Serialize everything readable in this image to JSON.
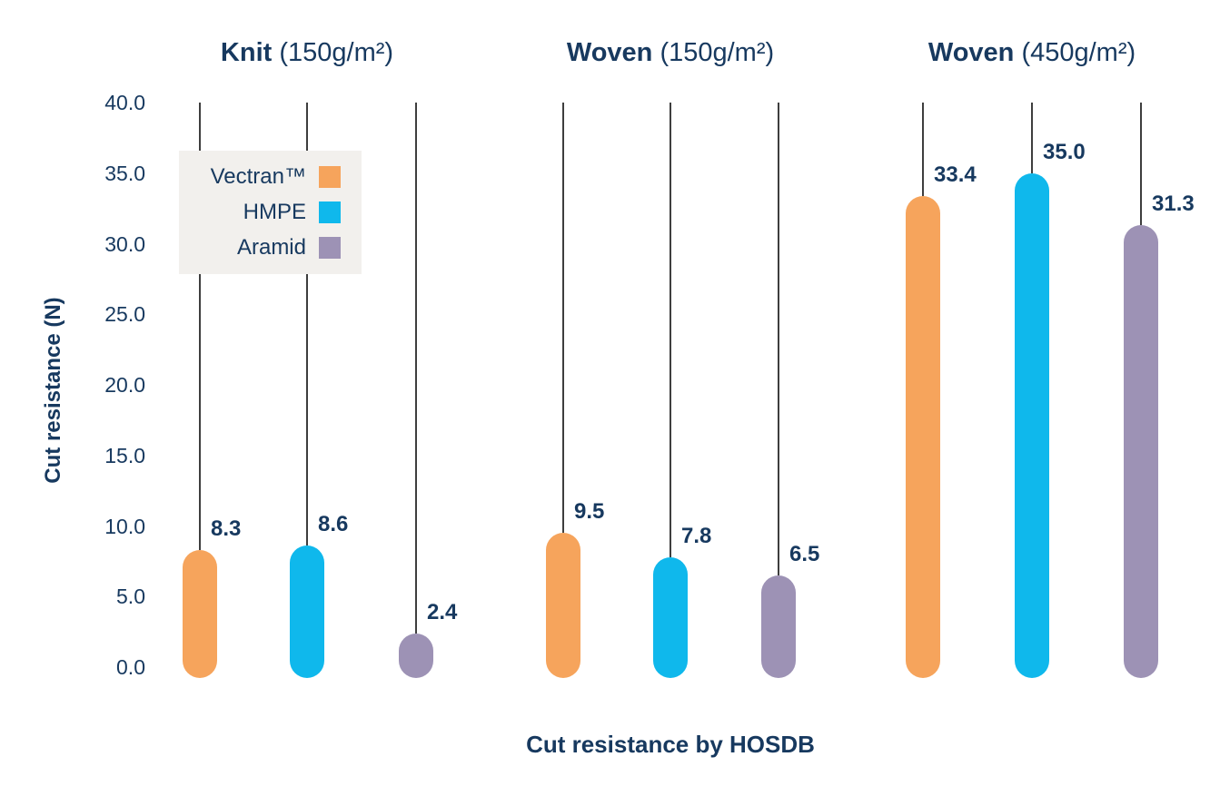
{
  "chart_data": {
    "type": "bar",
    "caption": "Cut resistance by HOSDB",
    "ylabel": "Cut resistance (N)",
    "ylim": [
      0,
      40
    ],
    "ytick_labels": [
      "40.0",
      "35.0",
      "30.0",
      "25.0",
      "20.0",
      "15.0",
      "10.0",
      "5.0",
      "0.0"
    ],
    "grid": false,
    "legend_position": "upper-left",
    "categories": [
      {
        "bold": "Knit",
        "rest": " (150g/m²)"
      },
      {
        "bold": "Woven",
        "rest": " (150g/m²)"
      },
      {
        "bold": "Woven",
        "rest": " (450g/m²)"
      }
    ],
    "series": [
      {
        "name": "Vectran™",
        "color": "#F6A45C",
        "values": [
          8.3,
          9.5,
          33.4
        ]
      },
      {
        "name": "HMPE",
        "color": "#0FB8EC",
        "values": [
          8.6,
          7.8,
          35.0
        ]
      },
      {
        "name": "Aramid",
        "color": "#9D92B5",
        "values": [
          2.4,
          6.5,
          31.3
        ]
      }
    ]
  },
  "colors": {
    "text": "#17395F",
    "stem": "#3E3E3E",
    "legend_background": "#F2F0ED",
    "background": "#FFFFFF"
  }
}
